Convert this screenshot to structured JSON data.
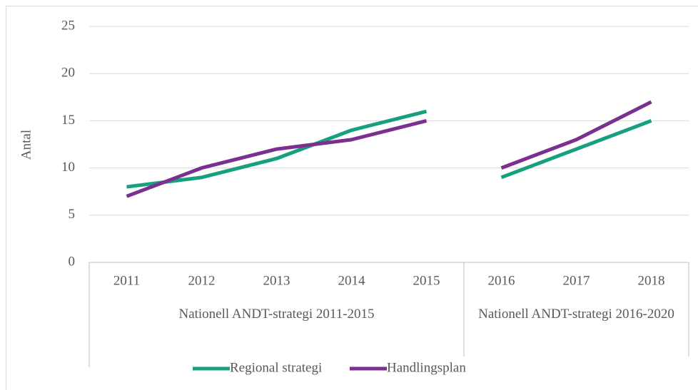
{
  "chart_data": {
    "type": "line",
    "y_label": "Antal",
    "groups": [
      {
        "label": "Nationell ANDT-strategi 2011-2015",
        "categories": [
          "2011",
          "2012",
          "2013",
          "2014",
          "2015"
        ]
      },
      {
        "label": "Nationell ANDT-strategi 2016-2020",
        "categories": [
          "2016",
          "2017",
          "2018"
        ]
      }
    ],
    "series": [
      {
        "name": "Regional strategi",
        "color": "#17a07f",
        "values": [
          [
            8,
            9,
            11,
            14,
            16
          ],
          [
            9,
            12,
            15
          ]
        ]
      },
      {
        "name": "Handlingsplan",
        "color": "#7b2f8f",
        "values": [
          [
            7,
            10,
            12,
            13,
            15
          ],
          [
            10,
            13,
            17
          ]
        ]
      }
    ],
    "ylim": [
      0,
      25
    ],
    "yticks": [
      0,
      5,
      10,
      15,
      20,
      25
    ],
    "grid": true,
    "legend": "bottom"
  }
}
